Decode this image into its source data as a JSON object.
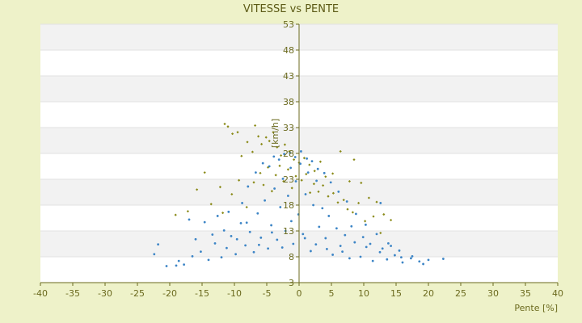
{
  "chart_data": {
    "type": "scatter",
    "title": "VITESSE vs PENTE",
    "xlabel": "Pente [%]",
    "ylabel": "[km/h]",
    "xlim": [
      -40,
      40
    ],
    "ylim": [
      3,
      53
    ],
    "x_ticks": [
      "-40",
      "-35",
      "-30",
      "-25",
      "-20",
      "-15",
      "-10",
      "-5",
      "0",
      "5",
      "10",
      "15",
      "20",
      "25",
      "30",
      "35",
      "40"
    ],
    "y_ticks": [
      "3",
      "8",
      "13",
      "18",
      "23",
      "28",
      "33",
      "38",
      "43",
      "48",
      "53"
    ],
    "grid": "horizontal alternating bands",
    "legend": "none",
    "series": [
      {
        "color": "#8a8a18",
        "marker": "diamond",
        "points": [
          [
            -11.5,
            33.7
          ],
          [
            -11.0,
            33.2
          ],
          [
            -10.3,
            31.8
          ],
          [
            -9.5,
            32.1
          ],
          [
            -8.9,
            27.5
          ],
          [
            -8.0,
            30.2
          ],
          [
            -7.2,
            28.3
          ],
          [
            -6.8,
            33.4
          ],
          [
            -6.3,
            31.3
          ],
          [
            -5.8,
            29.8
          ],
          [
            -5.1,
            31.1
          ],
          [
            -4.6,
            30.4
          ],
          [
            -4.0,
            32.1
          ],
          [
            -3.4,
            29.2
          ],
          [
            -2.8,
            27.6
          ],
          [
            -2.2,
            29.7
          ],
          [
            -1.5,
            28.4
          ],
          [
            -0.8,
            26.8
          ],
          [
            0.0,
            26.2
          ],
          [
            0.8,
            27.1
          ],
          [
            1.6,
            25.8
          ],
          [
            2.4,
            24.6
          ],
          [
            3.3,
            26.4
          ],
          [
            4.1,
            23.5
          ],
          [
            5.2,
            24.1
          ],
          [
            6.4,
            28.4
          ],
          [
            7.8,
            22.6
          ],
          [
            8.5,
            26.8
          ],
          [
            9.6,
            22.3
          ],
          [
            10.8,
            19.4
          ],
          [
            12.0,
            18.6
          ],
          [
            13.1,
            16.2
          ],
          [
            14.2,
            15.1
          ],
          [
            -14.6,
            24.3
          ],
          [
            -12.2,
            21.5
          ],
          [
            -10.4,
            20.1
          ],
          [
            -9.3,
            22.8
          ],
          [
            -8.1,
            17.6
          ],
          [
            -7.0,
            22.4
          ],
          [
            -6.0,
            24.2
          ],
          [
            -5.5,
            21.9
          ],
          [
            -4.8,
            25.3
          ],
          [
            -4.2,
            20.7
          ],
          [
            -3.6,
            23.8
          ],
          [
            -3.0,
            25.6
          ],
          [
            -2.4,
            22.6
          ],
          [
            -1.7,
            24.9
          ],
          [
            -1.1,
            21.3
          ],
          [
            -0.5,
            23.6
          ],
          [
            0.4,
            22.8
          ],
          [
            1.1,
            24.0
          ],
          [
            1.7,
            20.4
          ],
          [
            2.3,
            22.1
          ],
          [
            3.0,
            20.6
          ],
          [
            3.7,
            21.8
          ],
          [
            4.5,
            19.7
          ],
          [
            5.3,
            20.3
          ],
          [
            6.0,
            18.5
          ],
          [
            6.9,
            19.0
          ],
          [
            7.5,
            17.2
          ],
          [
            8.3,
            16.6
          ],
          [
            9.2,
            18.4
          ],
          [
            10.2,
            14.9
          ],
          [
            11.5,
            15.8
          ],
          [
            12.6,
            12.6
          ],
          [
            -15.8,
            21.0
          ],
          [
            -17.2,
            16.8
          ],
          [
            -19.1,
            16.1
          ],
          [
            -13.6,
            18.2
          ],
          [
            -11.8,
            16.5
          ]
        ]
      },
      {
        "color": "#3d85c6",
        "marker": "dot",
        "points": [
          [
            -20.5,
            6.2
          ],
          [
            -19.0,
            6.3
          ],
          [
            -17.8,
            6.5
          ],
          [
            -16.5,
            8.1
          ],
          [
            -15.2,
            9.0
          ],
          [
            -14.0,
            7.4
          ],
          [
            -13.0,
            10.6
          ],
          [
            -12.0,
            7.9
          ],
          [
            -11.2,
            9.7
          ],
          [
            -10.5,
            12.0
          ],
          [
            -9.8,
            8.5
          ],
          [
            -9.0,
            14.5
          ],
          [
            -8.3,
            10.2
          ],
          [
            -7.6,
            12.8
          ],
          [
            -7.0,
            8.9
          ],
          [
            -6.4,
            16.4
          ],
          [
            -5.9,
            11.7
          ],
          [
            -5.3,
            18.9
          ],
          [
            -4.8,
            9.6
          ],
          [
            -4.3,
            14.1
          ],
          [
            -3.8,
            21.2
          ],
          [
            -3.4,
            11.3
          ],
          [
            -2.9,
            17.6
          ],
          [
            -2.5,
            23.1
          ],
          [
            -2.1,
            13.0
          ],
          [
            -1.7,
            19.8
          ],
          [
            -1.3,
            25.2
          ],
          [
            -0.9,
            10.5
          ],
          [
            -0.5,
            22.6
          ],
          [
            -0.1,
            16.2
          ],
          [
            0.2,
            26.0
          ],
          [
            0.6,
            12.4
          ],
          [
            1.0,
            20.1
          ],
          [
            1.4,
            24.3
          ],
          [
            1.8,
            9.1
          ],
          [
            2.2,
            18.0
          ],
          [
            2.7,
            22.7
          ],
          [
            3.1,
            13.8
          ],
          [
            3.6,
            17.4
          ],
          [
            4.1,
            11.6
          ],
          [
            4.6,
            15.9
          ],
          [
            5.2,
            8.4
          ],
          [
            5.8,
            13.5
          ],
          [
            6.4,
            10.1
          ],
          [
            7.1,
            12.2
          ],
          [
            7.8,
            7.7
          ],
          [
            8.6,
            10.8
          ],
          [
            9.5,
            8.0
          ],
          [
            10.4,
            9.9
          ],
          [
            11.4,
            7.2
          ],
          [
            12.5,
            8.9
          ],
          [
            13.6,
            7.5
          ],
          [
            14.8,
            8.3
          ],
          [
            16.0,
            6.9
          ],
          [
            17.3,
            7.7
          ],
          [
            18.6,
            7.1
          ],
          [
            20.0,
            7.4
          ],
          [
            22.3,
            7.6
          ],
          [
            -21.8,
            10.4
          ],
          [
            -22.4,
            8.5
          ],
          [
            -18.6,
            7.2
          ],
          [
            -17.0,
            15.2
          ],
          [
            -16.0,
            11.4
          ],
          [
            -12.6,
            15.9
          ],
          [
            -11.6,
            13.1
          ],
          [
            -8.8,
            18.4
          ],
          [
            -7.9,
            21.6
          ],
          [
            -6.7,
            24.3
          ],
          [
            -5.6,
            26.1
          ],
          [
            -4.6,
            25.5
          ],
          [
            -3.9,
            27.4
          ],
          [
            -3.1,
            26.8
          ],
          [
            -2.3,
            27.9
          ],
          [
            -1.4,
            28.1
          ],
          [
            -0.6,
            27.3
          ],
          [
            0.3,
            28.4
          ],
          [
            1.2,
            27.0
          ],
          [
            2.0,
            26.5
          ],
          [
            2.9,
            25.0
          ],
          [
            3.9,
            24.2
          ],
          [
            4.9,
            22.4
          ],
          [
            6.1,
            20.6
          ],
          [
            7.4,
            18.7
          ],
          [
            8.8,
            16.3
          ],
          [
            10.3,
            14.2
          ],
          [
            12.0,
            12.4
          ],
          [
            13.8,
            10.6
          ],
          [
            15.5,
            9.2
          ],
          [
            17.5,
            8.1
          ],
          [
            12.6,
            18.4
          ],
          [
            -14.6,
            14.7
          ],
          [
            -13.4,
            12.3
          ],
          [
            -10.9,
            16.7
          ],
          [
            -9.6,
            11.4
          ],
          [
            -8.1,
            14.6
          ],
          [
            -6.2,
            10.3
          ],
          [
            -4.2,
            12.7
          ],
          [
            -2.6,
            9.8
          ],
          [
            -1.2,
            14.9
          ],
          [
            0.9,
            11.6
          ],
          [
            2.6,
            10.4
          ],
          [
            4.3,
            9.5
          ],
          [
            6.7,
            9.0
          ],
          [
            8.1,
            13.9
          ],
          [
            9.9,
            11.8
          ],
          [
            11.0,
            10.5
          ],
          [
            12.9,
            9.6
          ],
          [
            14.2,
            10.1
          ],
          [
            15.8,
            7.9
          ],
          [
            19.2,
            6.6
          ]
        ]
      }
    ]
  }
}
